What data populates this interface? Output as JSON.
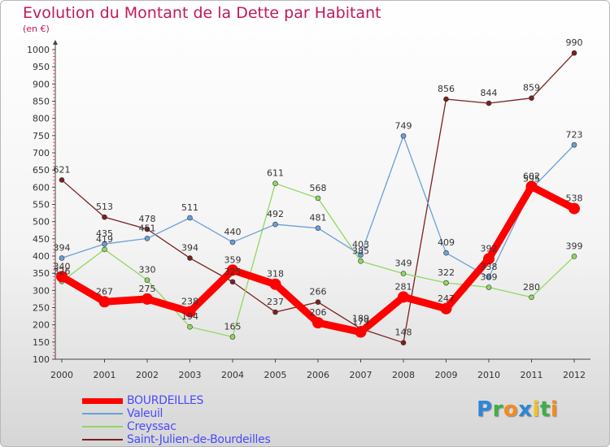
{
  "title": "Evolution du Montant de la Dette par Habitant",
  "subtitle": "(en €)",
  "logo": {
    "letters": [
      "P",
      "r",
      "o",
      "x",
      "i",
      "t",
      "i"
    ],
    "colors": [
      "#2e86d6",
      "#3fae49",
      "#f28c1e",
      "#2e86d6",
      "#f2c21e",
      "#3fae49",
      "#f28c1e"
    ]
  },
  "chart_data": {
    "type": "line",
    "title": "Evolution du Montant de la Dette par Habitant",
    "ylabel": "(en €)",
    "ylim": [
      100,
      1000
    ],
    "yticks": [
      100,
      150,
      200,
      250,
      300,
      350,
      400,
      450,
      500,
      550,
      600,
      650,
      700,
      750,
      800,
      850,
      900,
      950,
      1000
    ],
    "x": [
      "2000",
      "2001",
      "2002",
      "2003",
      "2004",
      "2005",
      "2006",
      "2007",
      "2008",
      "2009",
      "2010",
      "2011",
      "2012"
    ],
    "grid": false,
    "legend": "bottom-left",
    "series": [
      {
        "name": "BOURDEILLES",
        "color": "#ff0000",
        "values": [
          340,
          267,
          275,
          238,
          359,
          318,
          206,
          179,
          281,
          247,
          392,
          602,
          538
        ]
      },
      {
        "name": "Valeuil",
        "color": "#6aa0d8",
        "values": [
          394,
          435,
          451,
          511,
          440,
          492,
          481,
          403,
          749,
          409,
          338,
          595,
          723
        ]
      },
      {
        "name": "Creyssac",
        "color": "#90d860",
        "values": [
          326,
          419,
          330,
          194,
          165,
          611,
          568,
          385,
          349,
          322,
          309,
          280,
          399
        ]
      },
      {
        "name": "Saint-Julien-de-Bourdeilles",
        "color": "#7a2020",
        "values": [
          621,
          513,
          478,
          394,
          325,
          237,
          266,
          189,
          148,
          856,
          844,
          859,
          990
        ]
      }
    ]
  }
}
